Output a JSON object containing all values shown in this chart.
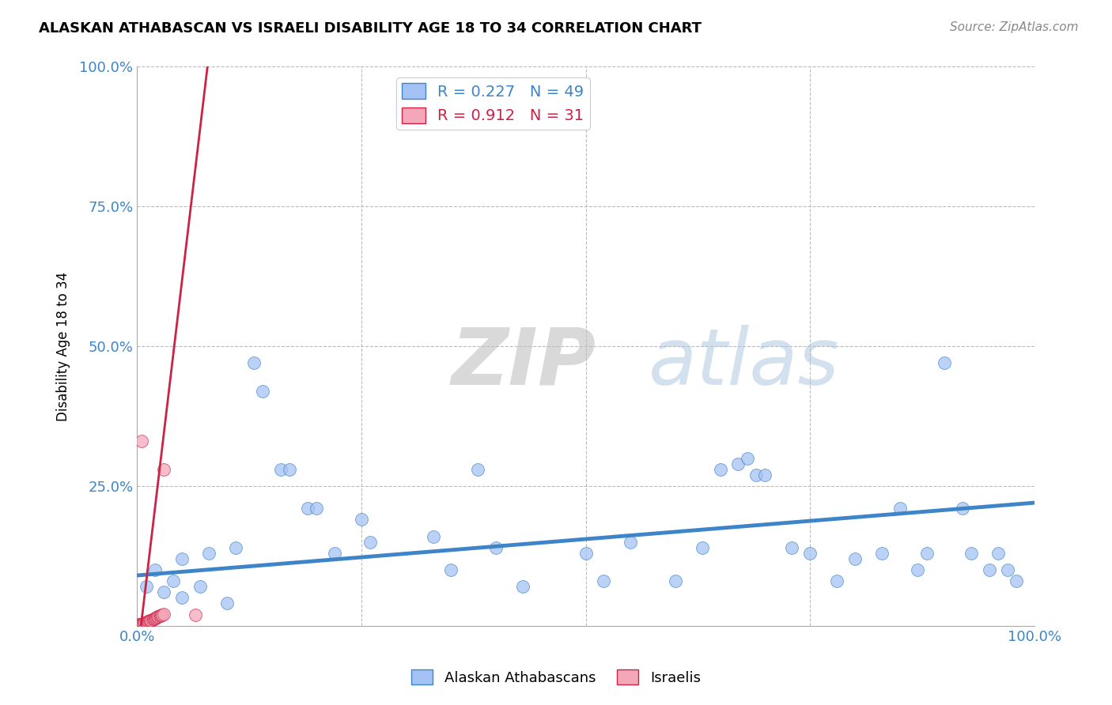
{
  "title": "ALASKAN ATHABASCAN VS ISRAELI DISABILITY AGE 18 TO 34 CORRELATION CHART",
  "source": "Source: ZipAtlas.com",
  "ylabel": "Disability Age 18 to 34",
  "xlim": [
    0,
    1.0
  ],
  "ylim": [
    0,
    1.0
  ],
  "blue_R": 0.227,
  "blue_N": 49,
  "pink_R": 0.912,
  "pink_N": 31,
  "blue_color": "#a4c2f4",
  "pink_color": "#f4a7b9",
  "blue_line_color": "#3d85c8",
  "pink_line_color": "#cc2244",
  "watermark_zip": "ZIP",
  "watermark_atlas": "atlas",
  "blue_scatter": [
    [
      0.01,
      0.07
    ],
    [
      0.02,
      0.1
    ],
    [
      0.03,
      0.06
    ],
    [
      0.04,
      0.08
    ],
    [
      0.05,
      0.05
    ],
    [
      0.05,
      0.12
    ],
    [
      0.07,
      0.07
    ],
    [
      0.08,
      0.13
    ],
    [
      0.1,
      0.04
    ],
    [
      0.11,
      0.14
    ],
    [
      0.13,
      0.47
    ],
    [
      0.14,
      0.42
    ],
    [
      0.16,
      0.28
    ],
    [
      0.17,
      0.28
    ],
    [
      0.19,
      0.21
    ],
    [
      0.2,
      0.21
    ],
    [
      0.22,
      0.13
    ],
    [
      0.25,
      0.19
    ],
    [
      0.26,
      0.15
    ],
    [
      0.33,
      0.16
    ],
    [
      0.35,
      0.1
    ],
    [
      0.38,
      0.28
    ],
    [
      0.4,
      0.14
    ],
    [
      0.43,
      0.07
    ],
    [
      0.5,
      0.13
    ],
    [
      0.52,
      0.08
    ],
    [
      0.55,
      0.15
    ],
    [
      0.6,
      0.08
    ],
    [
      0.63,
      0.14
    ],
    [
      0.65,
      0.28
    ],
    [
      0.67,
      0.29
    ],
    [
      0.68,
      0.3
    ],
    [
      0.69,
      0.27
    ],
    [
      0.7,
      0.27
    ],
    [
      0.73,
      0.14
    ],
    [
      0.75,
      0.13
    ],
    [
      0.78,
      0.08
    ],
    [
      0.8,
      0.12
    ],
    [
      0.83,
      0.13
    ],
    [
      0.85,
      0.21
    ],
    [
      0.87,
      0.1
    ],
    [
      0.88,
      0.13
    ],
    [
      0.9,
      0.47
    ],
    [
      0.92,
      0.21
    ],
    [
      0.93,
      0.13
    ],
    [
      0.95,
      0.1
    ],
    [
      0.96,
      0.13
    ],
    [
      0.97,
      0.1
    ],
    [
      0.98,
      0.08
    ]
  ],
  "pink_scatter": [
    [
      0.002,
      0.002
    ],
    [
      0.003,
      0.002
    ],
    [
      0.004,
      0.003
    ],
    [
      0.005,
      0.003
    ],
    [
      0.006,
      0.004
    ],
    [
      0.007,
      0.004
    ],
    [
      0.008,
      0.005
    ],
    [
      0.009,
      0.005
    ],
    [
      0.01,
      0.006
    ],
    [
      0.011,
      0.007
    ],
    [
      0.012,
      0.008
    ],
    [
      0.013,
      0.008
    ],
    [
      0.014,
      0.009
    ],
    [
      0.015,
      0.01
    ],
    [
      0.016,
      0.01
    ],
    [
      0.017,
      0.011
    ],
    [
      0.018,
      0.012
    ],
    [
      0.019,
      0.013
    ],
    [
      0.02,
      0.014
    ],
    [
      0.021,
      0.014
    ],
    [
      0.022,
      0.015
    ],
    [
      0.023,
      0.016
    ],
    [
      0.024,
      0.017
    ],
    [
      0.025,
      0.018
    ],
    [
      0.026,
      0.018
    ],
    [
      0.027,
      0.019
    ],
    [
      0.028,
      0.02
    ],
    [
      0.03,
      0.021
    ],
    [
      0.005,
      0.33
    ],
    [
      0.03,
      0.28
    ],
    [
      0.065,
      0.02
    ]
  ],
  "pink_line_points": [
    [
      0.0,
      -0.06
    ],
    [
      0.08,
      1.02
    ]
  ],
  "blue_line_points": [
    [
      0.0,
      0.09
    ],
    [
      1.0,
      0.22
    ]
  ]
}
